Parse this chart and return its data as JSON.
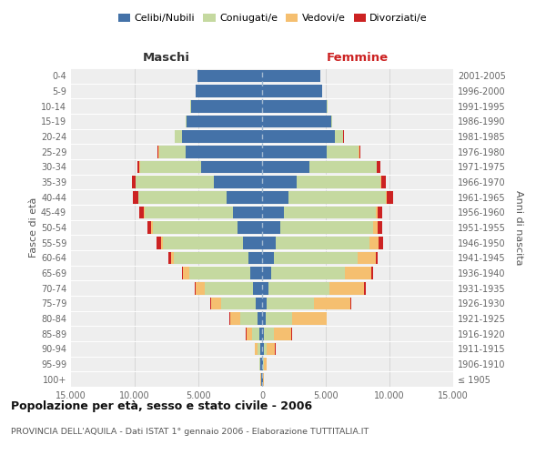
{
  "age_groups": [
    "100+",
    "95-99",
    "90-94",
    "85-89",
    "80-84",
    "75-79",
    "70-74",
    "65-69",
    "60-64",
    "55-59",
    "50-54",
    "45-49",
    "40-44",
    "35-39",
    "30-34",
    "25-29",
    "20-24",
    "15-19",
    "10-14",
    "5-9",
    "0-4"
  ],
  "birth_years": [
    "≤ 1905",
    "1906-1910",
    "1911-1915",
    "1916-1920",
    "1921-1925",
    "1926-1930",
    "1931-1935",
    "1936-1940",
    "1941-1945",
    "1946-1950",
    "1951-1955",
    "1956-1960",
    "1961-1965",
    "1966-1970",
    "1971-1975",
    "1976-1980",
    "1981-1985",
    "1986-1990",
    "1991-1995",
    "1996-2000",
    "2001-2005"
  ],
  "colors": {
    "celibi": "#4472a8",
    "coniugati": "#c5d9a0",
    "vedovi": "#f5bf70",
    "divorziati": "#cc2222"
  },
  "maschi": {
    "celibi": [
      80,
      120,
      160,
      250,
      350,
      500,
      700,
      900,
      1100,
      1500,
      1900,
      2300,
      2800,
      3800,
      4800,
      6000,
      6300,
      5900,
      5600,
      5200,
      5100
    ],
    "coniugati": [
      25,
      70,
      220,
      550,
      1400,
      2700,
      3800,
      4800,
      5800,
      6300,
      6700,
      6900,
      6900,
      6100,
      4800,
      2100,
      550,
      80,
      10,
      0,
      0
    ],
    "vedovi": [
      8,
      40,
      180,
      450,
      750,
      780,
      680,
      480,
      270,
      130,
      90,
      70,
      50,
      40,
      25,
      15,
      8,
      0,
      0,
      0,
      0
    ],
    "divorziati": [
      4,
      8,
      15,
      25,
      45,
      70,
      110,
      140,
      190,
      340,
      330,
      340,
      380,
      280,
      180,
      70,
      25,
      8,
      0,
      0,
      0
    ]
  },
  "femmine": {
    "celibi": [
      60,
      100,
      130,
      170,
      250,
      350,
      500,
      700,
      900,
      1100,
      1400,
      1700,
      2100,
      2700,
      3700,
      5100,
      5700,
      5400,
      5100,
      4700,
      4600
    ],
    "coniugati": [
      15,
      60,
      250,
      750,
      2100,
      3700,
      4800,
      5800,
      6600,
      7300,
      7300,
      7200,
      7600,
      6600,
      5300,
      2500,
      650,
      100,
      10,
      0,
      0
    ],
    "vedovi": [
      70,
      220,
      650,
      1400,
      2700,
      2900,
      2700,
      2100,
      1400,
      750,
      370,
      180,
      90,
      55,
      25,
      15,
      8,
      0,
      0,
      0,
      0
    ],
    "divorziati": [
      4,
      8,
      15,
      25,
      45,
      70,
      110,
      140,
      170,
      330,
      380,
      380,
      480,
      330,
      230,
      90,
      35,
      8,
      0,
      0,
      0
    ]
  },
  "xlim": 15000,
  "title": "Popolazione per età, sesso e stato civile - 2006",
  "subtitle": "PROVINCIA DELL'AQUILA - Dati ISTAT 1° gennaio 2006 - Elaborazione TUTTITALIA.IT",
  "xlabel_left": "Maschi",
  "xlabel_right": "Femmine",
  "ylabel_left": "Fasce di età",
  "ylabel_right": "Anni di nascita",
  "xticks": [
    -15000,
    -10000,
    -5000,
    0,
    5000,
    10000,
    15000
  ],
  "xticklabels": [
    "15.000",
    "10.000",
    "5.000",
    "0",
    "5.000",
    "10.000",
    "15.000"
  ],
  "legend_labels": [
    "Celibi/Nubili",
    "Coniugati/e",
    "Vedovi/e",
    "Divorziati/e"
  ],
  "bg_color": "#eeeeee",
  "bar_height": 0.82
}
